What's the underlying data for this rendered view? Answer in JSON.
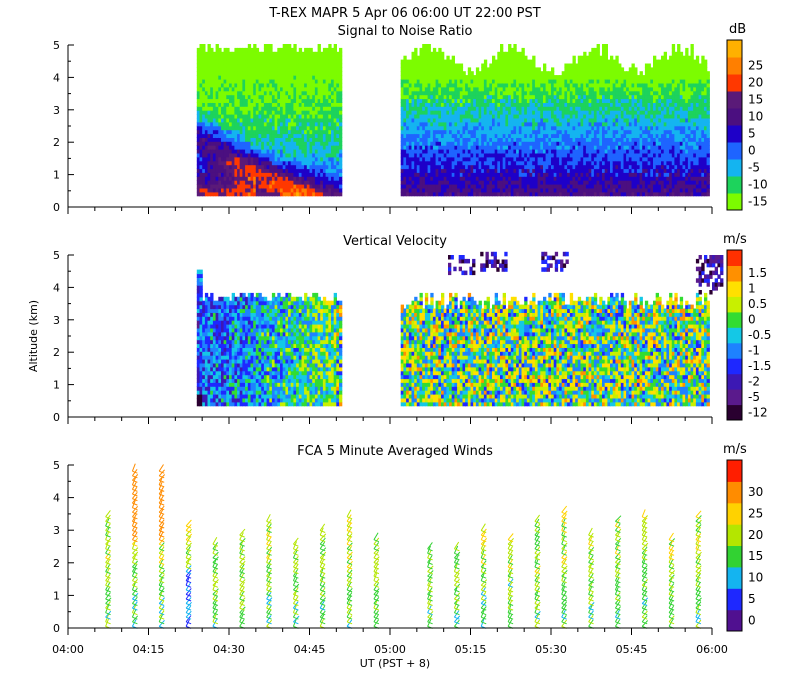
{
  "figure": {
    "title": "T-REX  MAPR  5 Apr 06  06:00 UT  22:00  PST",
    "ylabel": "Altitude (km)",
    "xlabel": "UT  (PST + 8)"
  },
  "chart_data": [
    {
      "type": "heatmap",
      "title": "Signal to Noise Ratio",
      "colorbar_unit": "dB",
      "colorbar_levels": [
        {
          "label": "-15",
          "color": "#7cfc00"
        },
        {
          "label": "-10",
          "color": "#1dd35c"
        },
        {
          "label": "-5",
          "color": "#14b4f0"
        },
        {
          "label": "0",
          "color": "#1e64ff"
        },
        {
          "label": "5",
          "color": "#1e00c8"
        },
        {
          "label": "10",
          "color": "#4b0f80"
        },
        {
          "label": "15",
          "color": "#5a1a78"
        },
        {
          "label": "20",
          "color": "#ff3800"
        },
        {
          "label": "25",
          "color": "#ff7f00"
        },
        {
          "label": "",
          "color": "#ffb000"
        }
      ],
      "ylim": [
        0,
        5
      ],
      "yticks": [
        "0",
        "1",
        "2",
        "3",
        "4",
        "5"
      ],
      "xlim_hours": [
        4,
        6
      ],
      "data_gaps": [
        [
          "04:51",
          "05:02"
        ]
      ],
      "data_top_km": 5.0
    },
    {
      "type": "heatmap",
      "title": "Vertical Velocity",
      "colorbar_unit": "m/s",
      "colorbar_levels": [
        {
          "label": "-12",
          "color": "#2a0030"
        },
        {
          "label": "-5",
          "color": "#5a1a8c"
        },
        {
          "label": "-2",
          "color": "#3c18b4"
        },
        {
          "label": "-1.5",
          "color": "#1e28ff"
        },
        {
          "label": "-1",
          "color": "#1e82ff"
        },
        {
          "label": "-0.5",
          "color": "#14c8e6"
        },
        {
          "label": "0",
          "color": "#32dc32"
        },
        {
          "label": "0.5",
          "color": "#c8f000"
        },
        {
          "label": "1",
          "color": "#ffe000"
        },
        {
          "label": "1.5",
          "color": "#ff9000"
        },
        {
          "label": "",
          "color": "#ff3000"
        }
      ],
      "ylim": [
        0,
        5
      ],
      "yticks": [
        "0",
        "1",
        "2",
        "3",
        "4",
        "5"
      ],
      "xlim_hours": [
        4,
        6
      ],
      "data_gaps": [
        [
          "04:51",
          "05:02"
        ]
      ]
    },
    {
      "type": "scatter",
      "title": "FCA 5 Minute Averaged Winds",
      "colorbar_unit": "m/s",
      "colorbar_levels": [
        {
          "label": "0",
          "color": "#501090"
        },
        {
          "label": "5",
          "color": "#1e28ff"
        },
        {
          "label": "10",
          "color": "#14b4f0"
        },
        {
          "label": "15",
          "color": "#32d232"
        },
        {
          "label": "20",
          "color": "#b4e600"
        },
        {
          "label": "25",
          "color": "#ffd200"
        },
        {
          "label": "30",
          "color": "#ff8c00"
        },
        {
          "label": "",
          "color": "#ff1e00"
        }
      ],
      "ylim": [
        0,
        5
      ],
      "yticks": [
        "0",
        "1",
        "2",
        "3",
        "4",
        "5"
      ],
      "x_tick_labels": [
        "04:00",
        "04:15",
        "04:30",
        "04:45",
        "05:00",
        "05:15",
        "05:30",
        "05:45",
        "06:00"
      ],
      "profile_times": [
        "04:07",
        "04:12",
        "04:17",
        "04:22",
        "04:27",
        "04:32",
        "04:37",
        "04:42",
        "04:47",
        "04:52",
        "04:57",
        "05:07",
        "05:12",
        "05:17",
        "05:22",
        "05:27",
        "05:32",
        "05:37",
        "05:42",
        "05:47",
        "05:52",
        "05:57"
      ]
    }
  ]
}
